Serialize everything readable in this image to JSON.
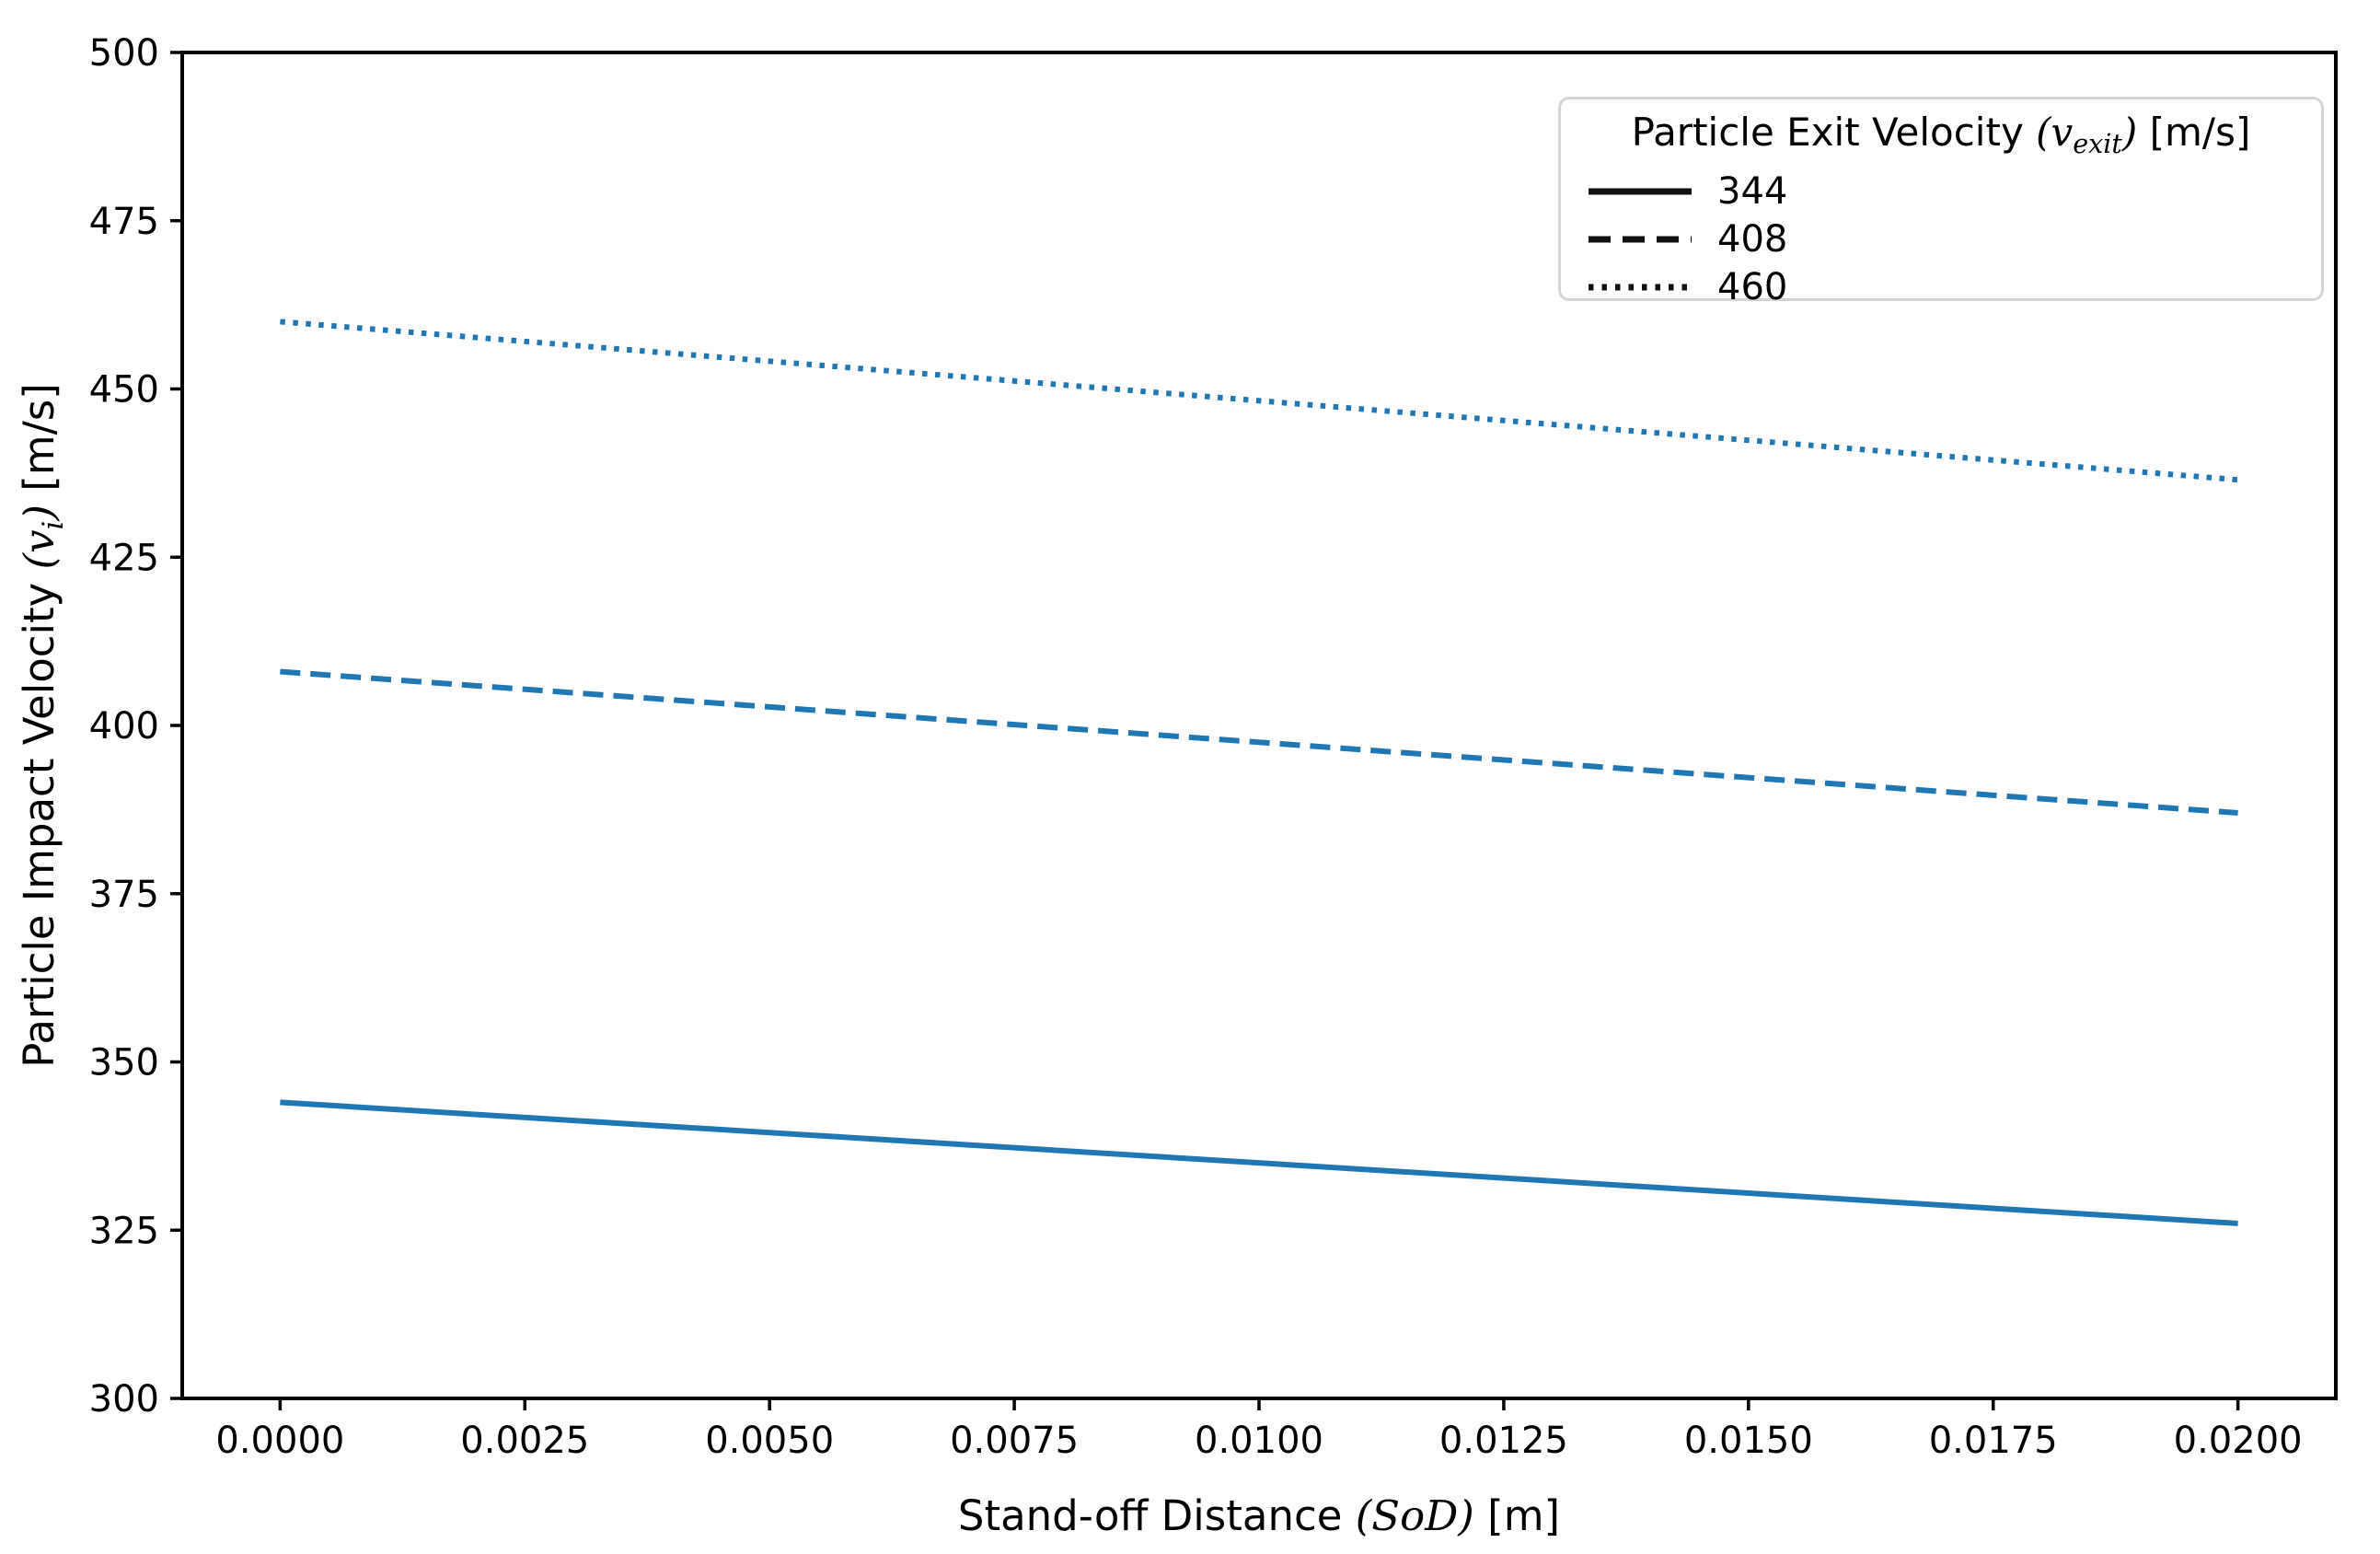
{
  "figure": {
    "background": "#ffffff",
    "text_color": "#000000",
    "spine_color": "#000000"
  },
  "chart_data": {
    "type": "line",
    "title": "",
    "xlabel_plain": "Stand-off Distance (SoD) [m]",
    "ylabel_plain": "Particle Impact Velocity (v_i) [m/s]",
    "xlabel_segments": [
      {
        "t": "Stand-off Distance ",
        "it": false,
        "sub": false
      },
      {
        "t": "(SoD)",
        "it": true,
        "sub": false
      },
      {
        "t": " [m]",
        "it": false,
        "sub": false
      }
    ],
    "ylabel_segments": [
      {
        "t": "Particle Impact Velocity ",
        "it": false,
        "sub": false
      },
      {
        "t": "(v",
        "it": true,
        "sub": false
      },
      {
        "t": "i",
        "it": true,
        "sub": true
      },
      {
        "t": ")",
        "it": true,
        "sub": false
      },
      {
        "t": " [m/s]",
        "it": false,
        "sub": false
      }
    ],
    "xlim": [
      -0.001,
      0.021
    ],
    "ylim": [
      300,
      500
    ],
    "grid": false,
    "x_ticks": {
      "values": [
        0.0,
        0.0025,
        0.005,
        0.0075,
        0.01,
        0.0125,
        0.015,
        0.0175,
        0.02
      ],
      "labels": [
        "0.0000",
        "0.0025",
        "0.0050",
        "0.0075",
        "0.0100",
        "0.0125",
        "0.0150",
        "0.0175",
        "0.0200"
      ]
    },
    "y_ticks": {
      "values": [
        300,
        325,
        350,
        375,
        400,
        425,
        450,
        475,
        500
      ],
      "labels": [
        "300",
        "325",
        "350",
        "375",
        "400",
        "425",
        "450",
        "475",
        "500"
      ]
    },
    "line_color": "#1f77b4",
    "series": [
      {
        "name": "344",
        "linestyle": "solid",
        "color": "#1f77b4",
        "x": [
          0.0,
          0.02
        ],
        "y": [
          344,
          326
        ]
      },
      {
        "name": "408",
        "linestyle": "dashed",
        "color": "#1f77b4",
        "x": [
          0.0,
          0.02
        ],
        "y": [
          408,
          387
        ]
      },
      {
        "name": "460",
        "linestyle": "dotted",
        "color": "#1f77b4",
        "x": [
          0.0,
          0.02
        ],
        "y": [
          460,
          436.5
        ]
      }
    ],
    "legend": {
      "position": "upper right",
      "title_plain": "Particle Exit Velocity (v_exit) [m/s]",
      "title_segments": [
        {
          "t": "Particle Exit Velocity ",
          "it": false,
          "sub": false
        },
        {
          "t": "(v",
          "it": true,
          "sub": false
        },
        {
          "t": "exit",
          "it": true,
          "sub": true
        },
        {
          "t": ")",
          "it": true,
          "sub": false
        },
        {
          "t": " [m/s]",
          "it": false,
          "sub": false
        }
      ],
      "handle_color": "#111111",
      "border_color": "#d4d4d4",
      "entries": [
        {
          "label": "344",
          "linestyle": "solid"
        },
        {
          "label": "408",
          "linestyle": "dashed"
        },
        {
          "label": "460",
          "linestyle": "dotted"
        }
      ]
    }
  }
}
